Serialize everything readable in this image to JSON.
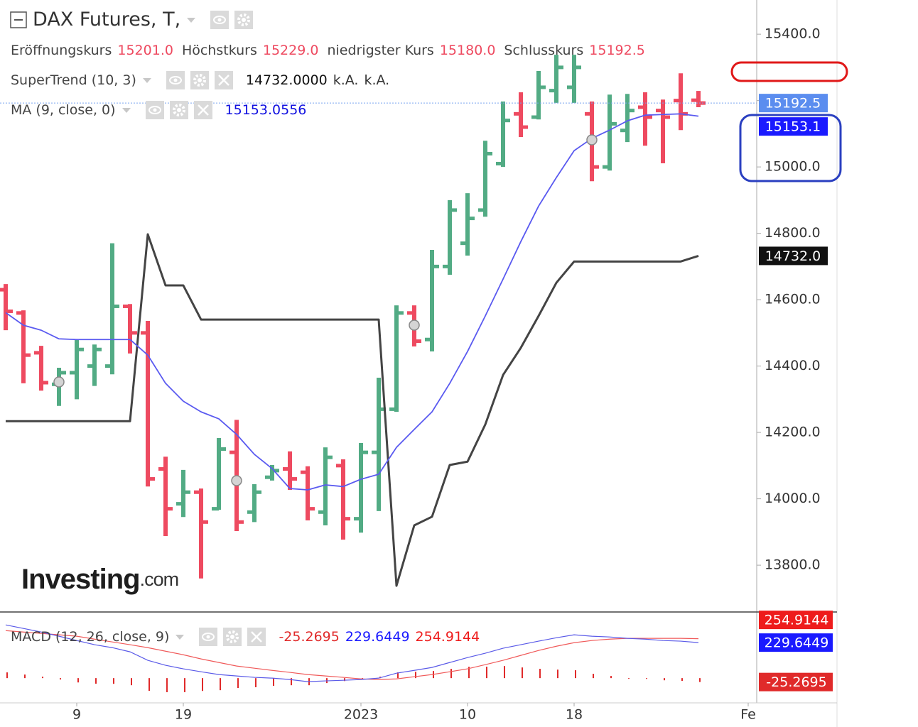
{
  "chart_data": [
    {
      "type": "ohlc",
      "title": "DAX Futures, T,",
      "ohlc_legend": [
        {
          "label": "Eröffnungskurs",
          "value": "15201.0"
        },
        {
          "label": "Höchstkurs",
          "value": "15229.0"
        },
        {
          "label": "niedrigster Kurs",
          "value": "15180.0"
        },
        {
          "label": "Schlusskurs",
          "value": "15192.5"
        }
      ],
      "up_color": "#52ab84",
      "down_color": "#ee4a60",
      "open": [
        14630,
        14560,
        14440,
        14345,
        14380,
        14400,
        14400,
        14580,
        14500,
        14090,
        13985,
        14020,
        13970,
        14140,
        13960,
        14065,
        14090,
        14080,
        13960,
        14100,
        13940,
        14140,
        14270,
        14560,
        14480,
        14700,
        14770,
        14870,
        15010,
        15160,
        15150,
        15230,
        15240,
        15160,
        15000,
        15110,
        15180,
        15170,
        15200,
        15201
      ],
      "high": [
        14647,
        14568,
        14461,
        14395,
        14480,
        14465,
        14770,
        14587,
        14536,
        14127,
        14087,
        14031,
        14183,
        14238,
        14044,
        14102,
        14143,
        14098,
        14155,
        14119,
        14168,
        14365,
        14583,
        14583,
        14750,
        14900,
        14921,
        15079,
        15197,
        15225,
        15289,
        15338,
        15338,
        15197,
        15218,
        15220,
        15225,
        15203,
        15282,
        15229
      ],
      "low": [
        14508,
        14348,
        14326,
        14280,
        14300,
        14340,
        14375,
        14438,
        14037,
        13888,
        13945,
        13760,
        13967,
        13903,
        13930,
        14055,
        14027,
        13935,
        13920,
        13877,
        13898,
        13963,
        14262,
        14459,
        14444,
        14675,
        14733,
        14850,
        15000,
        15090,
        15143,
        15193,
        15193,
        14957,
        14989,
        15075,
        15064,
        15011,
        15111,
        15180
      ],
      "close": [
        14565,
        14433,
        14350,
        14380,
        14450,
        14450,
        14580,
        14500,
        14060,
        13970,
        14020,
        13930,
        14150,
        13930,
        14020,
        14085,
        14060,
        13970,
        14125,
        13940,
        14140,
        14270,
        14560,
        14475,
        14700,
        14870,
        14845,
        15040,
        15140,
        15120,
        15240,
        15300,
        15300,
        15000,
        15130,
        15170,
        15150,
        15150,
        15160,
        15192.5
      ],
      "close_label": "15192.5",
      "close_label_color": "#5b8def",
      "overlays": [
        {
          "name": "SuperTrend (10, 3)",
          "color": "#444444",
          "values": [
            14234,
            14234,
            14234,
            14234,
            14234,
            14234,
            14234,
            14234,
            14797,
            14643,
            14643,
            14540,
            14540,
            14540,
            14540,
            14540,
            14540,
            14540,
            14540,
            14540,
            14540,
            14540,
            13738,
            13920,
            13946,
            14102,
            14112,
            14224,
            14373,
            14455,
            14551,
            14651,
            14715,
            14715,
            14715,
            14715,
            14715,
            14715,
            14715,
            14732
          ],
          "legend_value": "14732.0000",
          "legend_extra": [
            "k.A.",
            "k.A."
          ],
          "axis_label": "14732.0",
          "axis_label_color": "#111111"
        },
        {
          "name": "MA (9, close, 0)",
          "color": "#5a5af0",
          "values": [
            14561,
            14523,
            14508,
            14482,
            14480,
            14480,
            14480,
            14480,
            14433,
            14348,
            14294,
            14262,
            14241,
            14194,
            14134,
            14091,
            14031,
            14027,
            14042,
            14037,
            14059,
            14074,
            14155,
            14209,
            14262,
            14348,
            14444,
            14551,
            14662,
            14775,
            14882,
            14968,
            15049,
            15086,
            15111,
            15139,
            15156,
            15158,
            15160,
            15153.0556
          ],
          "legend_value": "15153.0556",
          "axis_label": "15153.1",
          "axis_label_color": "#1a1aff"
        }
      ],
      "ylim": [
        13659,
        15503
      ],
      "yticks": [
        {
          "value": 13800,
          "label": "13800.0"
        },
        {
          "value": 14000,
          "label": "14000.0"
        },
        {
          "value": 14200,
          "label": "14200.0"
        },
        {
          "value": 14400,
          "label": "14400.0"
        },
        {
          "value": 14600,
          "label": "14600.0"
        },
        {
          "value": 14800,
          "label": "14800.0"
        },
        {
          "value": 15000,
          "label": "15000.0"
        },
        {
          "value": 15200,
          "label": "15200.0"
        },
        {
          "value": 15400,
          "label": "15400.0"
        }
      ],
      "watermark": {
        "brand": "Investing",
        "suffix": ".com"
      }
    },
    {
      "type": "macd",
      "name": "MACD (12, 26, close, 9)",
      "histogram": {
        "color": "#e02a2a",
        "label": "-25.2695",
        "values": [
          37,
          23,
          9,
          -9,
          -28,
          -36,
          -37,
          -46,
          -82,
          -91,
          -91,
          -83,
          -78,
          -64,
          -59,
          -50,
          -46,
          -46,
          -32,
          -19,
          -4,
          9,
          37,
          41,
          46,
          60,
          73,
          74,
          78,
          69,
          60,
          55,
          51,
          28,
          14,
          0,
          -5,
          -14,
          -18,
          -25.2695
        ]
      },
      "macd": {
        "color": "#1a1aff",
        "line_color": "#5a5ae8",
        "label": "229.6449",
        "values": [
          344,
          321,
          298,
          271,
          243,
          216,
          197,
          170,
          115,
          83,
          60,
          41,
          23,
          14,
          5,
          0,
          -9,
          -23,
          -18,
          -14,
          -9,
          0,
          32,
          50,
          69,
          101,
          133,
          161,
          193,
          216,
          239,
          261,
          280,
          271,
          266,
          257,
          252,
          243,
          239,
          229.6449
        ]
      },
      "signal": {
        "color": "#ee1c1c",
        "line_color": "#f05a5a",
        "label": "254.9144",
        "values": [
          307,
          298,
          289,
          280,
          271,
          252,
          234,
          216,
          197,
          174,
          151,
          124,
          101,
          78,
          64,
          50,
          37,
          23,
          14,
          5,
          -5,
          -9,
          -5,
          9,
          23,
          41,
          60,
          87,
          115,
          147,
          179,
          206,
          229,
          243,
          252,
          257,
          257,
          257,
          257,
          254.9144
        ]
      },
      "ylim": [
        -160,
        400
      ],
      "xticks": [
        {
          "value": 4,
          "label": "9"
        },
        {
          "value": 10,
          "label": "19"
        },
        {
          "value": 20,
          "label": "2023"
        },
        {
          "value": 26,
          "label": "10"
        },
        {
          "value": 32,
          "label": "18"
        },
        {
          "value": 41.8,
          "label": "Fe"
        }
      ]
    }
  ]
}
